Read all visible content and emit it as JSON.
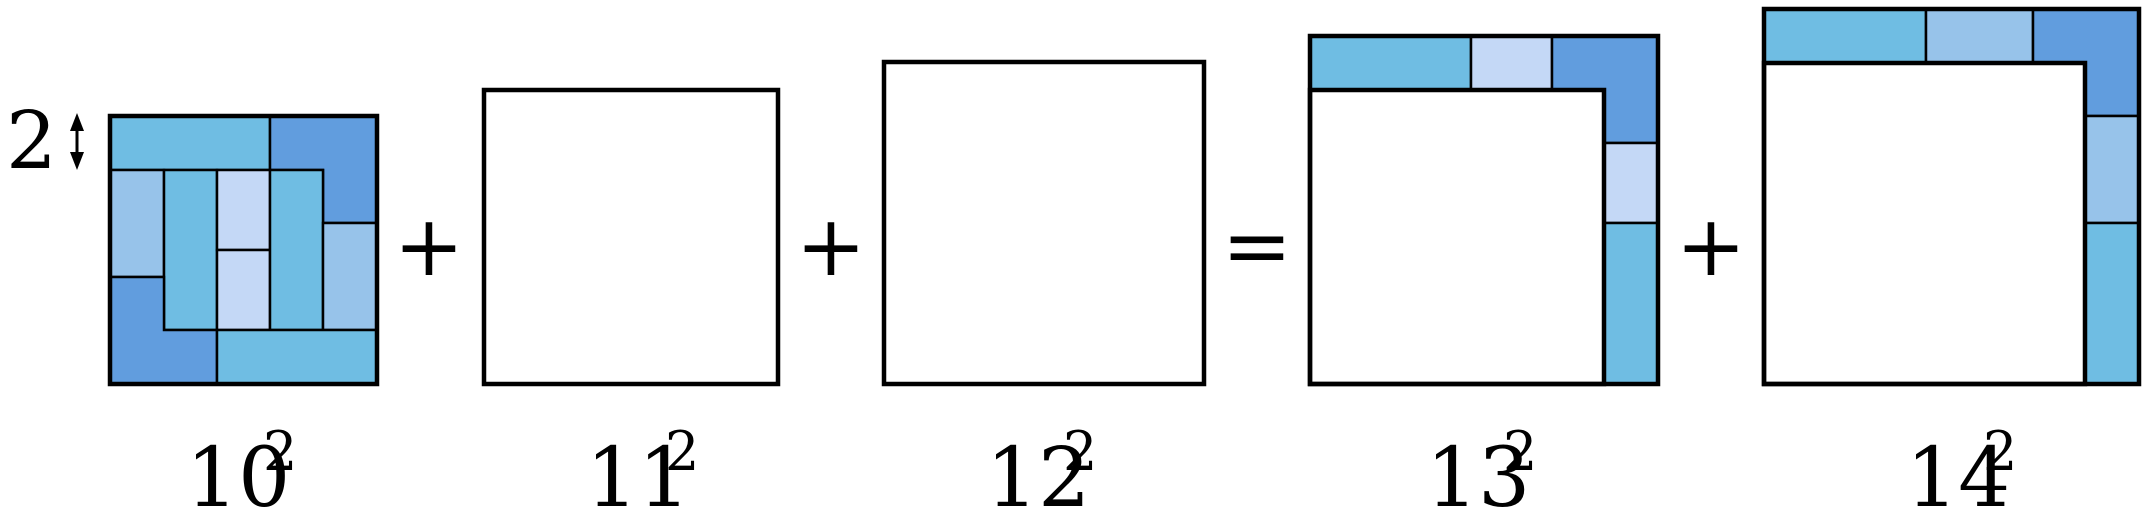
{
  "equation": {
    "terms": [
      {
        "base": "10",
        "exponent": "2"
      },
      {
        "base": "11",
        "exponent": "2"
      },
      {
        "base": "12",
        "exponent": "2"
      },
      {
        "base": "13",
        "exponent": "2"
      },
      {
        "base": "14",
        "exponent": "2"
      }
    ],
    "operators": [
      "+",
      "+",
      "=",
      "+"
    ]
  },
  "dimension_label": "2",
  "colors": {
    "tile_cyan": "#6fbde3",
    "tile_blue": "#619dde",
    "tile_light": "#97c3ea",
    "tile_pale": "#c4d8f6",
    "square_11": "#647ffe",
    "square_12": "#7268bf"
  }
}
